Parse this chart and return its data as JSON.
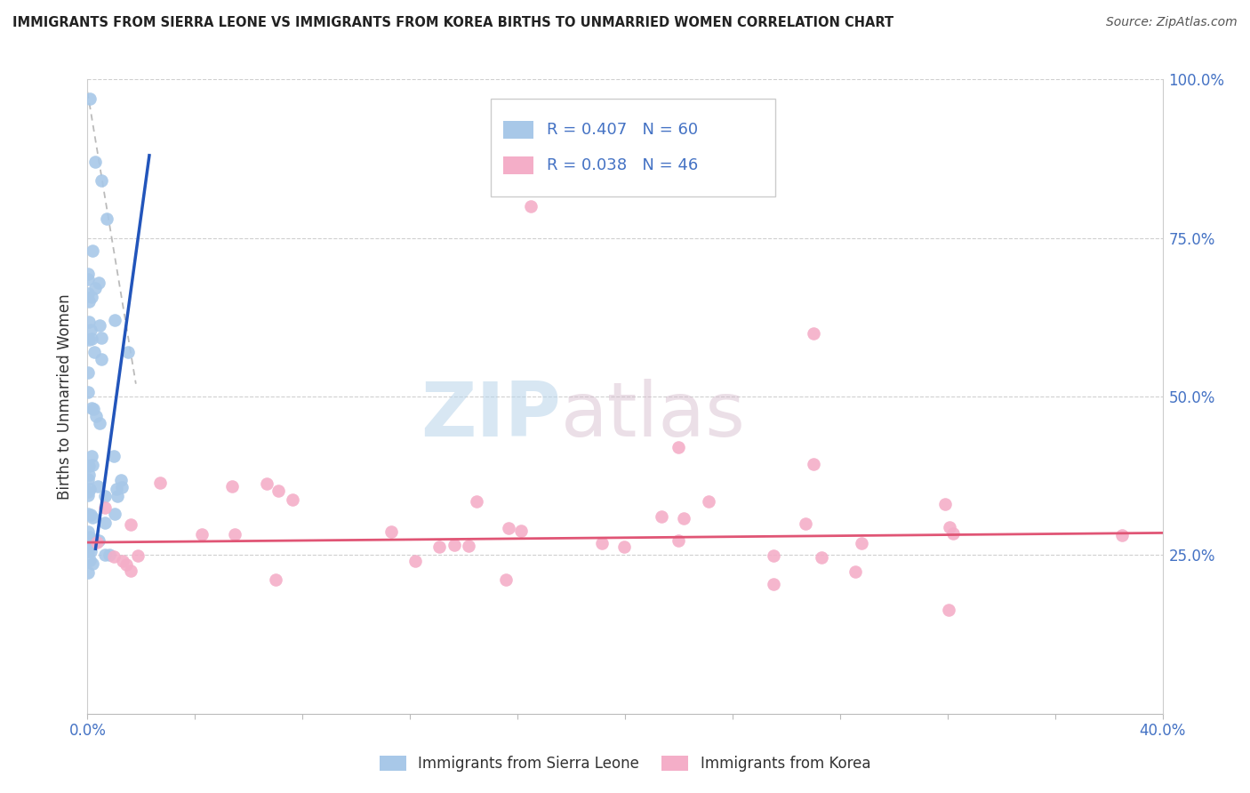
{
  "title": "IMMIGRANTS FROM SIERRA LEONE VS IMMIGRANTS FROM KOREA BIRTHS TO UNMARRIED WOMEN CORRELATION CHART",
  "source": "Source: ZipAtlas.com",
  "ylabel": "Births to Unmarried Women",
  "xlim": [
    0.0,
    0.4
  ],
  "ylim": [
    0.0,
    1.0
  ],
  "xticks": [
    0.0,
    0.04,
    0.08,
    0.12,
    0.16,
    0.2,
    0.24,
    0.28,
    0.32,
    0.36,
    0.4
  ],
  "yticks": [
    0.0,
    0.25,
    0.5,
    0.75,
    1.0
  ],
  "ytick_labels": [
    "",
    "25.0%",
    "50.0%",
    "75.0%",
    "100.0%"
  ],
  "sierra_leone_color": "#a8c8e8",
  "korea_color": "#f4aec8",
  "sierra_leone_line_color": "#2255bb",
  "korea_line_color": "#e05575",
  "legend_sierra_leone": "Immigrants from Sierra Leone",
  "legend_korea": "Immigrants from Korea",
  "R_sierra": "R = 0.407",
  "N_sierra": "N = 60",
  "R_korea": "R = 0.038",
  "N_korea": "N = 46",
  "watermark_zip": "ZIP",
  "watermark_atlas": "atlas",
  "background_color": "#ffffff",
  "grid_color": "#d0d0d0",
  "title_color": "#222222",
  "source_color": "#555555",
  "axis_label_color": "#4472c4",
  "legend_box_color": "#dddddd"
}
